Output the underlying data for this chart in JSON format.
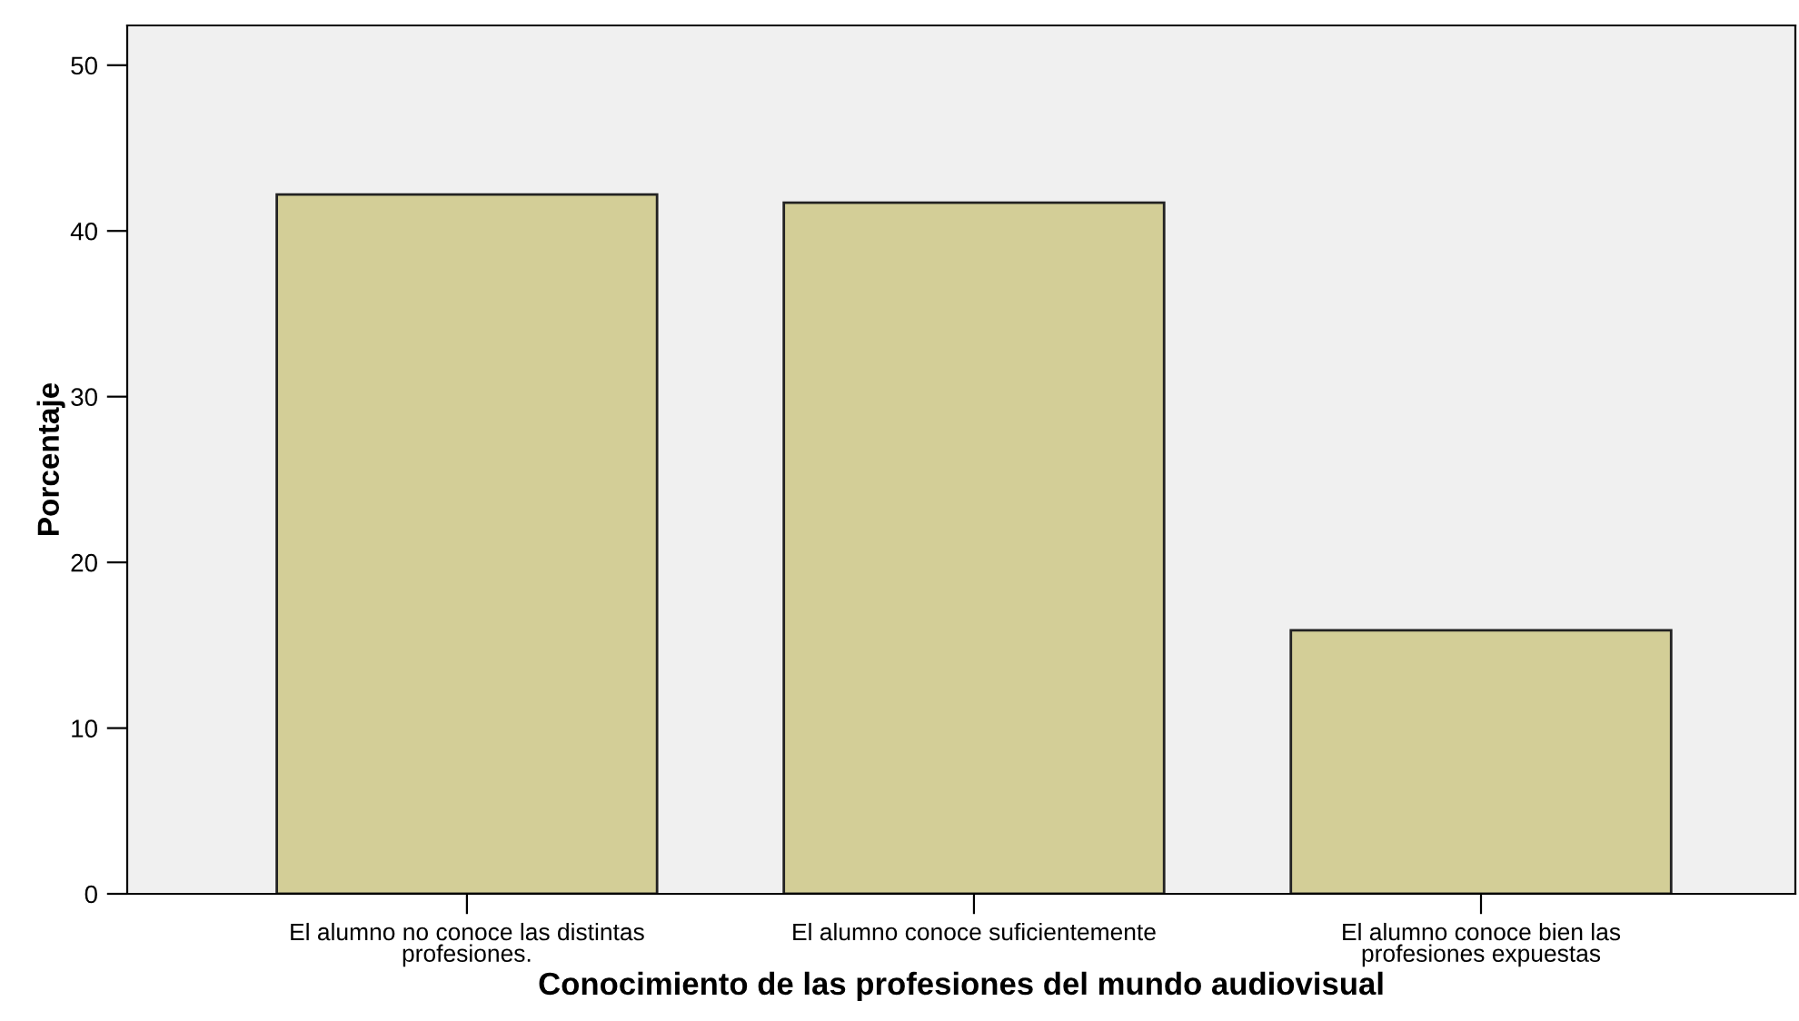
{
  "chart_data": {
    "type": "bar",
    "xlabel": "Conocimiento de las profesiones del mundo audiovisual",
    "ylabel": "Porcentaje",
    "categories": [
      "El alumno no conoce las distintas\nprofesiones.",
      "El alumno conoce suficientemente",
      "El alumno conoce bien las\nprofesiones expuestas"
    ],
    "values": [
      42.2,
      41.7,
      15.9
    ],
    "color": "#d3ce97",
    "ylim": [
      0,
      52.4
    ],
    "yticks": [
      0,
      10,
      20,
      30,
      40,
      50
    ],
    "grid": false
  }
}
